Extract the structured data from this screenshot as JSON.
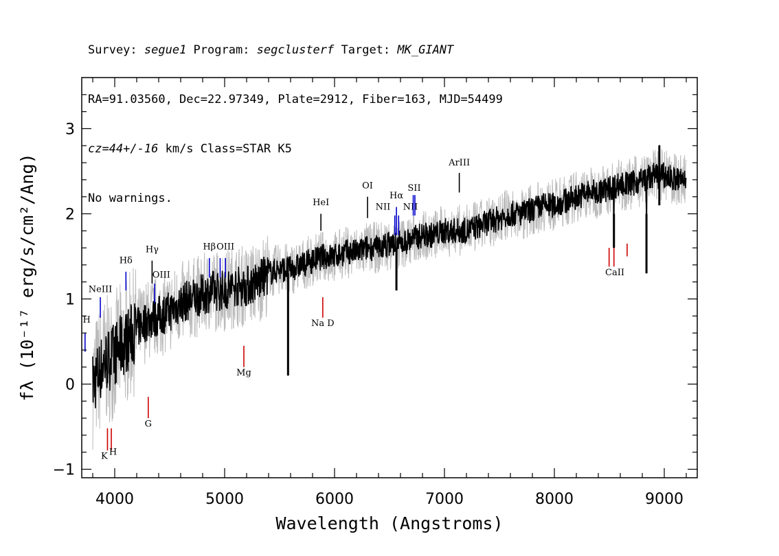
{
  "header": {
    "line1": {
      "p1": "Survey: ",
      "survey": "segue1",
      "p2": " Program: ",
      "program": "segclusterf",
      "p3": " Target: ",
      "target": "MK_GIANT"
    },
    "line2": "RA=91.03560, Dec=22.97349, Plate=2912, Fiber=163, MJD=54499",
    "line3": {
      "cz": "cz=44+/-16",
      "rest": " km/s Class=STAR K5"
    },
    "line4": "No warnings."
  },
  "chart_data": {
    "type": "line",
    "xlabel": "Wavelength (Angstroms)",
    "ylabel": "fλ (10⁻¹⁷ erg/s/cm²/Ang)",
    "xlim": [
      3700,
      9300
    ],
    "ylim": [
      -1.1,
      3.6
    ],
    "x_ticks": [
      4000,
      5000,
      6000,
      7000,
      8000,
      9000
    ],
    "y_ticks": [
      -1,
      0,
      1,
      2,
      3
    ],
    "x_range_spectrum": [
      3800,
      9200
    ],
    "series": [
      {
        "name": "",
        "color": "#bbbbbb",
        "role": "error envelope",
        "x": [
          3800,
          3900,
          4000,
          4100,
          4200,
          4300,
          4400,
          4500,
          4600,
          4700,
          4800,
          4900,
          5000,
          5100,
          5200,
          5300,
          5400,
          5500,
          5600,
          5700,
          5800,
          5900,
          6000,
          6100,
          6200,
          6300,
          6400,
          6500,
          6600,
          6700,
          6800,
          6900,
          7000,
          7100,
          7200,
          7300,
          7400,
          7500,
          7600,
          7700,
          7800,
          7900,
          8000,
          8100,
          8200,
          8300,
          8400,
          8500,
          8600,
          8700,
          8800,
          8900,
          9000,
          9100,
          9200
        ],
        "values": [
          0.0,
          0.25,
          0.35,
          0.5,
          0.65,
          0.75,
          0.8,
          0.85,
          0.95,
          1.0,
          1.05,
          1.1,
          1.1,
          1.15,
          1.15,
          1.2,
          1.3,
          1.35,
          1.35,
          1.4,
          1.45,
          1.5,
          1.5,
          1.55,
          1.55,
          1.6,
          1.6,
          1.65,
          1.65,
          1.7,
          1.75,
          1.75,
          1.8,
          1.8,
          1.8,
          1.85,
          1.9,
          1.95,
          2.0,
          2.0,
          2.05,
          2.1,
          2.1,
          2.15,
          2.2,
          2.25,
          2.25,
          2.3,
          2.35,
          2.35,
          2.4,
          2.45,
          2.45,
          2.4,
          2.4
        ]
      },
      {
        "name": "",
        "color": "#000000",
        "role": "flux",
        "x": [
          3800,
          3900,
          4000,
          4100,
          4200,
          4300,
          4400,
          4500,
          4600,
          4700,
          4800,
          4900,
          5000,
          5100,
          5200,
          5300,
          5400,
          5500,
          5600,
          5700,
          5800,
          5900,
          6000,
          6100,
          6200,
          6300,
          6400,
          6500,
          6600,
          6700,
          6800,
          6900,
          7000,
          7100,
          7200,
          7300,
          7400,
          7500,
          7600,
          7700,
          7800,
          7900,
          8000,
          8100,
          8200,
          8300,
          8400,
          8500,
          8600,
          8700,
          8800,
          8900,
          9000,
          9100,
          9200
        ],
        "values": [
          0.0,
          0.25,
          0.35,
          0.5,
          0.65,
          0.75,
          0.8,
          0.85,
          0.95,
          1.0,
          1.05,
          1.1,
          1.1,
          1.15,
          1.15,
          1.2,
          1.3,
          1.35,
          1.35,
          1.4,
          1.45,
          1.5,
          1.5,
          1.55,
          1.55,
          1.6,
          1.6,
          1.65,
          1.65,
          1.7,
          1.75,
          1.75,
          1.8,
          1.8,
          1.8,
          1.85,
          1.9,
          1.95,
          2.0,
          2.0,
          2.05,
          2.1,
          2.1,
          2.15,
          2.2,
          2.25,
          2.25,
          2.3,
          2.35,
          2.35,
          2.4,
          2.45,
          2.45,
          2.4,
          2.4
        ]
      }
    ],
    "features": [
      {
        "x": 5577,
        "ymin": 0.1,
        "ymax": 1.3
      },
      {
        "x": 6563,
        "ymin": 1.1,
        "ymax": 1.6
      },
      {
        "x": 8542,
        "ymin": 1.6,
        "ymax": 2.0
      },
      {
        "x": 8838,
        "ymin": 1.3,
        "ymax": 2.0
      },
      {
        "x": 8955,
        "ymin": 2.1,
        "ymax": 2.8
      }
    ],
    "lines": [
      {
        "label": "H",
        "wl": 3730,
        "color": "#0000cc",
        "y0": 0.38,
        "y1": 0.6,
        "lx": 3745,
        "ly": 0.72
      },
      {
        "label": "NeIII",
        "wl": 3869,
        "color": "#0000cc",
        "y0": 0.78,
        "y1": 1.02,
        "lx": 3869,
        "ly": 1.08
      },
      {
        "label": "Hδ",
        "wl": 4102,
        "color": "#0000cc",
        "y0": 1.1,
        "y1": 1.32,
        "lx": 4102,
        "ly": 1.42
      },
      {
        "label": "Hγ",
        "wl": 4340,
        "color": "#000000",
        "y0": 1.18,
        "y1": 1.45,
        "lx": 4340,
        "ly": 1.55
      },
      {
        "label": "OIII",
        "wl": 4363,
        "color": "#0000cc",
        "y0": 0.95,
        "y1": 1.18,
        "lx": 4424,
        "ly": 1.25
      },
      {
        "label": "Hβ",
        "wl": 4861,
        "color": "#0000cc",
        "y0": 1.25,
        "y1": 1.48,
        "lx": 4861,
        "ly": 1.58
      },
      {
        "label": "OIII",
        "wl": 4959,
        "color": "#0000cc",
        "y0": 1.25,
        "y1": 1.48,
        "lx": 5007,
        "ly": 1.58
      },
      {
        "label": "OIII",
        "wl": 5007,
        "color": "#0000cc",
        "y0": 1.25,
        "y1": 1.48,
        "lx": null,
        "ly": null
      },
      {
        "label": "HeI",
        "wl": 5876,
        "color": "#000000",
        "y0": 1.8,
        "y1": 2.0,
        "lx": 5876,
        "ly": 2.1
      },
      {
        "label": "OI",
        "wl": 6300,
        "color": "#000000",
        "y0": 1.95,
        "y1": 2.2,
        "lx": 6300,
        "ly": 2.3
      },
      {
        "label": "NII",
        "wl": 6548,
        "color": "#0000cc",
        "y0": 1.75,
        "y1": 1.98,
        "lx": 6440,
        "ly": 2.05
      },
      {
        "label": "Hα",
        "wl": 6563,
        "color": "#0000cc",
        "y0": 1.75,
        "y1": 2.08,
        "lx": 6563,
        "ly": 2.18
      },
      {
        "label": "NII",
        "wl": 6583,
        "color": "#0000cc",
        "y0": 1.75,
        "y1": 1.98,
        "lx": 6690,
        "ly": 2.05
      },
      {
        "label": "SII",
        "wl": 6716,
        "color": "#0000cc",
        "y0": 1.98,
        "y1": 2.22,
        "lx": 6725,
        "ly": 2.27
      },
      {
        "label": "SII",
        "wl": 6731,
        "color": "#0000cc",
        "y0": 1.98,
        "y1": 2.22,
        "lx": null,
        "ly": null
      },
      {
        "label": "ArIII",
        "wl": 7135,
        "color": "#000000",
        "y0": 2.25,
        "y1": 2.48,
        "lx": 7135,
        "ly": 2.57
      },
      {
        "label": "K",
        "wl": 3934,
        "color": "#cc0000",
        "y0": -0.78,
        "y1": -0.52,
        "lx": 3905,
        "ly": -0.88
      },
      {
        "label": "H",
        "wl": 3969,
        "color": "#cc0000",
        "y0": -0.78,
        "y1": -0.52,
        "lx": 3985,
        "ly": -0.83
      },
      {
        "label": "G",
        "wl": 4305,
        "color": "#cc0000",
        "y0": -0.4,
        "y1": -0.15,
        "lx": 4305,
        "ly": -0.5
      },
      {
        "label": "Mg",
        "wl": 5175,
        "color": "#cc0000",
        "y0": 0.2,
        "y1": 0.45,
        "lx": 5175,
        "ly": 0.1
      },
      {
        "label": "Na D",
        "wl": 5893,
        "color": "#cc0000",
        "y0": 0.78,
        "y1": 1.02,
        "lx": 5893,
        "ly": 0.68
      },
      {
        "label": "CaII",
        "wl": 8498,
        "color": "#cc0000",
        "y0": 1.38,
        "y1": 1.6,
        "lx": 8550,
        "ly": 1.28
      },
      {
        "label": "CaII",
        "wl": 8542,
        "color": "#cc0000",
        "y0": 1.38,
        "y1": 1.6,
        "lx": null,
        "ly": null
      },
      {
        "label": "CaII",
        "wl": 8662,
        "color": "#cc0000",
        "y0": 1.5,
        "y1": 1.65,
        "lx": null,
        "ly": null
      }
    ]
  }
}
